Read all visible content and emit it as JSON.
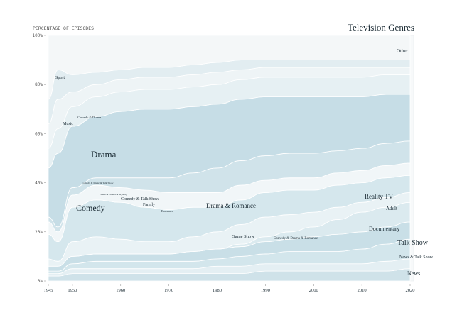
{
  "chart_data": {
    "type": "area",
    "title": "Television Genres",
    "ylabel": "PERCENTAGE OF EPISODES",
    "xlabel": "",
    "stacked": true,
    "normalized": true,
    "grid": false,
    "xlim": [
      1945,
      2020
    ],
    "ylim": [
      0,
      100
    ],
    "x_ticks": [
      "1945",
      "1950",
      "1960",
      "1970",
      "1980",
      "1990",
      "2000",
      "2010",
      "2020"
    ],
    "y_ticks": [
      "0%",
      "20%",
      "40%",
      "60%",
      "80%",
      "100%"
    ],
    "x": [
      1945,
      1947,
      1950,
      1955,
      1960,
      1965,
      1970,
      1975,
      1980,
      1985,
      1990,
      1995,
      2000,
      2005,
      2010,
      2015,
      2020
    ],
    "series": [
      {
        "name": "News",
        "values": [
          2,
          2,
          3,
          3,
          3,
          3,
          3,
          3,
          3,
          3,
          4,
          4,
          4,
          4,
          4,
          4,
          5
        ]
      },
      {
        "name": "News & Talk Show",
        "values": [
          1,
          1,
          2,
          2,
          2,
          2,
          2,
          2,
          3,
          3,
          3,
          3,
          3,
          3,
          3,
          4,
          4
        ]
      },
      {
        "name": "Talk Show",
        "values": [
          1,
          1,
          2,
          3,
          3,
          3,
          3,
          3,
          3,
          4,
          4,
          5,
          5,
          5,
          6,
          7,
          8
        ]
      },
      {
        "name": "Documentary",
        "values": [
          2,
          2,
          3,
          3,
          3,
          3,
          3,
          4,
          4,
          4,
          5,
          5,
          6,
          7,
          7,
          7,
          7
        ]
      },
      {
        "name": "Reality TV",
        "values": [
          0,
          0,
          0,
          0,
          0,
          0,
          0,
          0,
          0,
          1,
          2,
          3,
          4,
          6,
          8,
          8,
          8
        ]
      },
      {
        "name": "Game Show",
        "values": [
          3,
          2,
          6,
          7,
          6,
          5,
          5,
          6,
          7,
          8,
          8,
          7,
          6,
          5,
          4,
          4,
          4
        ]
      },
      {
        "name": "Comedy",
        "values": [
          10,
          8,
          14,
          15,
          15,
          14,
          13,
          12,
          10,
          10,
          10,
          10,
          9,
          9,
          8,
          8,
          7
        ]
      },
      {
        "name": "Family",
        "values": [
          5,
          4,
          5,
          6,
          6,
          7,
          7,
          6,
          6,
          6,
          5,
          5,
          5,
          5,
          5,
          5,
          5
        ]
      },
      {
        "name": "Drama & Romance",
        "values": [
          2,
          2,
          3,
          3,
          4,
          5,
          6,
          8,
          10,
          10,
          10,
          10,
          10,
          9,
          9,
          9,
          9
        ]
      },
      {
        "name": "Drama",
        "values": [
          20,
          30,
          25,
          25,
          27,
          28,
          28,
          27,
          26,
          25,
          24,
          23,
          23,
          22,
          21,
          20,
          19
        ]
      },
      {
        "name": "Comedy & Drama",
        "values": [
          8,
          10,
          8,
          8,
          8,
          8,
          8,
          8,
          8,
          8,
          8,
          8,
          8,
          8,
          8,
          8,
          8
        ]
      },
      {
        "name": "Music",
        "values": [
          10,
          12,
          6,
          5,
          5,
          5,
          5,
          5,
          5,
          4,
          4,
          4,
          4,
          4,
          4,
          3,
          3
        ]
      },
      {
        "name": "Sport",
        "values": [
          10,
          12,
          7,
          5,
          4,
          4,
          4,
          4,
          4,
          4,
          3,
          3,
          3,
          3,
          3,
          3,
          3
        ]
      },
      {
        "name": "Other",
        "values": [
          26,
          14,
          16,
          15,
          14,
          13,
          13,
          12,
          11,
          10,
          10,
          10,
          10,
          10,
          10,
          10,
          10
        ]
      }
    ],
    "colors": [
      "#cfe2e9",
      "#e4eff3",
      "#d3e6ec",
      "#c9dfe7",
      "#dbeaef",
      "#e9f2f5",
      "#d5e7ed",
      "#f1f6f8",
      "#d0e3ea",
      "#c6dde6",
      "#e6f0f3",
      "#eef4f6",
      "#e2edf1",
      "#f4f7f8"
    ],
    "annotations": {
      "other": "Other",
      "sport": "Sport",
      "music": "Music",
      "comedy_drama": "Comedy & Drama",
      "drama": "Drama",
      "comedy": "Comedy",
      "comedy_talk": "Comedy & Talk Show",
      "family": "Family",
      "romance": "Romance",
      "crime_drama_mystery": "Crime & Drama & Mystery",
      "comedy_music_talk": "Comedy & Music & Talk Show",
      "drama_romance": "Drama & Romance",
      "game_show": "Game Show",
      "comedy_drama_romance": "Comedy & Drama & Romance",
      "reality_tv": "Reality TV",
      "adult": "Adult",
      "documentary": "Documentary",
      "talk_show": "Talk Show",
      "news_talk": "News & Talk Show",
      "news": "News"
    }
  }
}
